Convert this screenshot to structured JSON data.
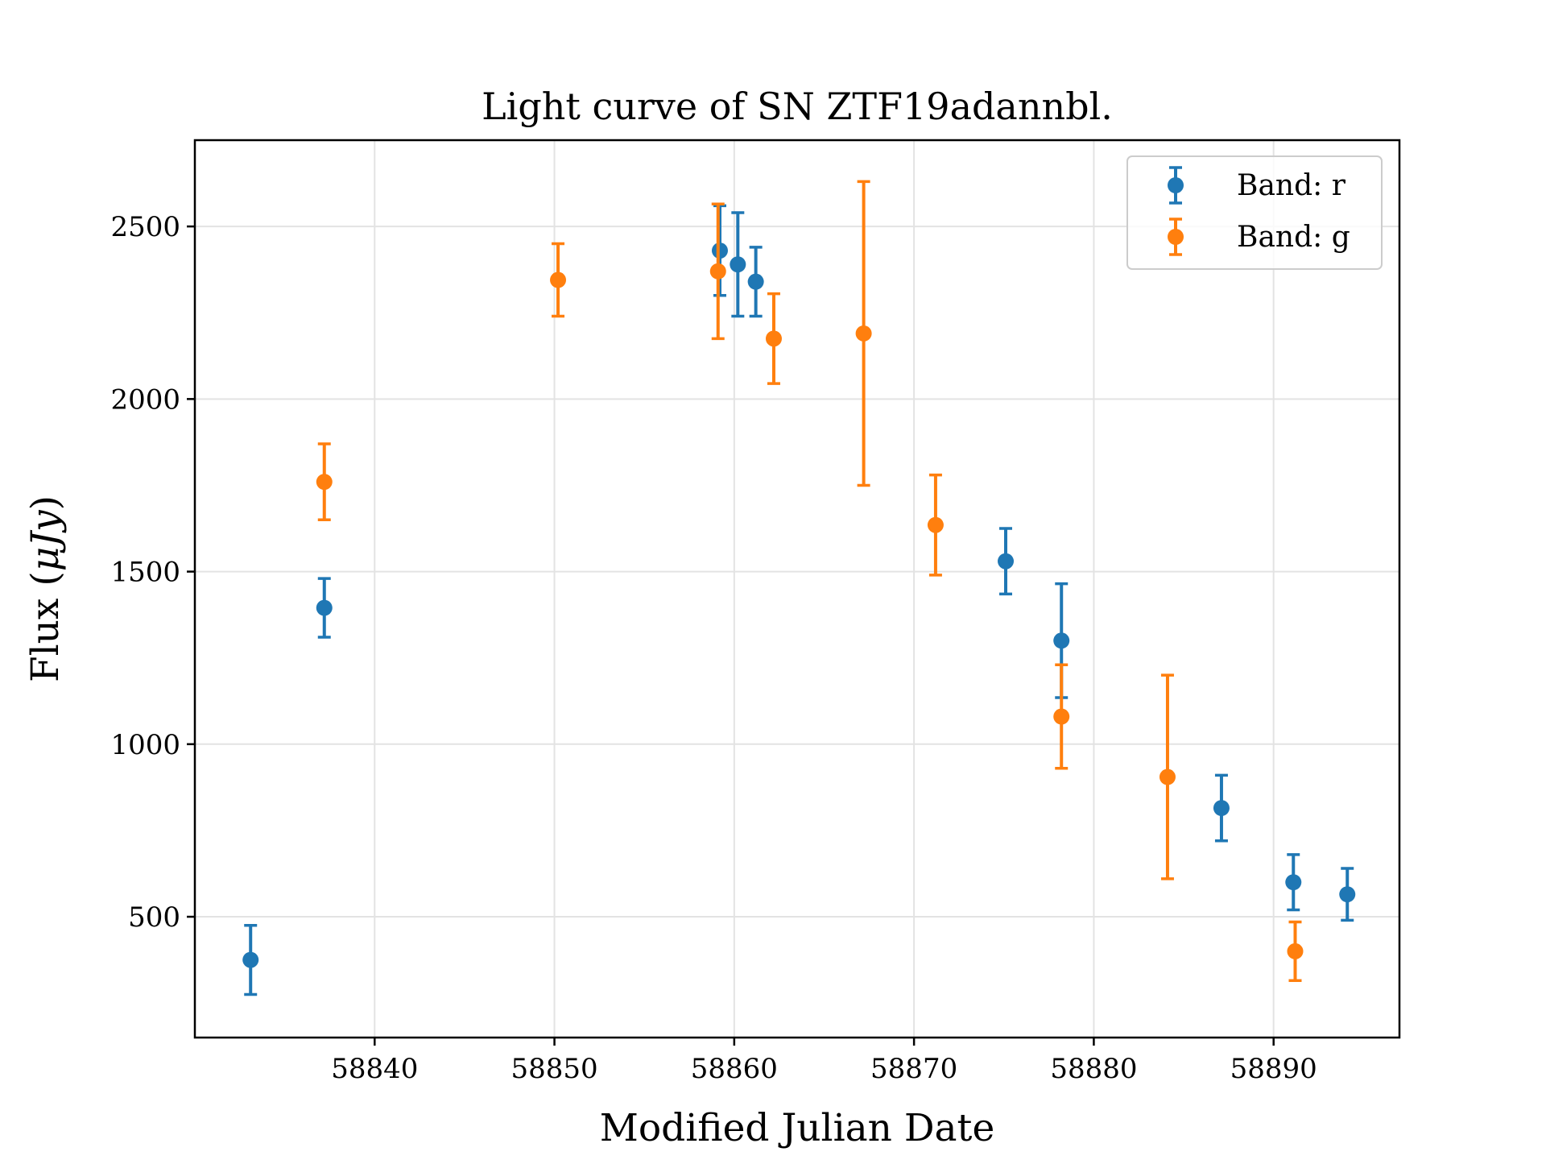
{
  "chart_data": {
    "type": "scatter",
    "title": "Light curve of SN ZTF19adannbl.",
    "xlabel": "Modified Julian Date",
    "ylabel": "Flux (",
    "ylabel_unit": "μJy",
    "ylabel_suffix": ")",
    "xlim": [
      58830,
      58897
    ],
    "ylim": [
      150,
      2750
    ],
    "xticks": [
      58840,
      58850,
      58860,
      58870,
      58880,
      58890
    ],
    "yticks": [
      500,
      1000,
      1500,
      2000,
      2500
    ],
    "grid": true,
    "legend_position": "top-right",
    "series": [
      {
        "name": "Band: r",
        "color": "#1f77b4",
        "points": [
          {
            "x": 58833.1,
            "y": 375,
            "err": 100
          },
          {
            "x": 58837.2,
            "y": 1395,
            "err": 85
          },
          {
            "x": 58859.2,
            "y": 2430,
            "err": 130
          },
          {
            "x": 58860.2,
            "y": 2390,
            "err": 150
          },
          {
            "x": 58861.2,
            "y": 2340,
            "err": 100
          },
          {
            "x": 58875.1,
            "y": 1530,
            "err": 95
          },
          {
            "x": 58878.2,
            "y": 1300,
            "err": 165
          },
          {
            "x": 58887.1,
            "y": 815,
            "err": 95
          },
          {
            "x": 58891.1,
            "y": 600,
            "err": 80
          },
          {
            "x": 58894.1,
            "y": 565,
            "err": 75
          }
        ]
      },
      {
        "name": "Band: g",
        "color": "#ff7f0e",
        "points": [
          {
            "x": 58837.2,
            "y": 1760,
            "err": 110
          },
          {
            "x": 58850.2,
            "y": 2345,
            "err": 105
          },
          {
            "x": 58859.1,
            "y": 2370,
            "err": 195
          },
          {
            "x": 58862.2,
            "y": 2175,
            "err": 130
          },
          {
            "x": 58867.2,
            "y": 2190,
            "err": 440
          },
          {
            "x": 58871.2,
            "y": 1635,
            "err": 145
          },
          {
            "x": 58878.2,
            "y": 1080,
            "err": 150
          },
          {
            "x": 58884.1,
            "y": 905,
            "err": 295
          },
          {
            "x": 58891.2,
            "y": 400,
            "err": 85
          }
        ]
      }
    ]
  }
}
